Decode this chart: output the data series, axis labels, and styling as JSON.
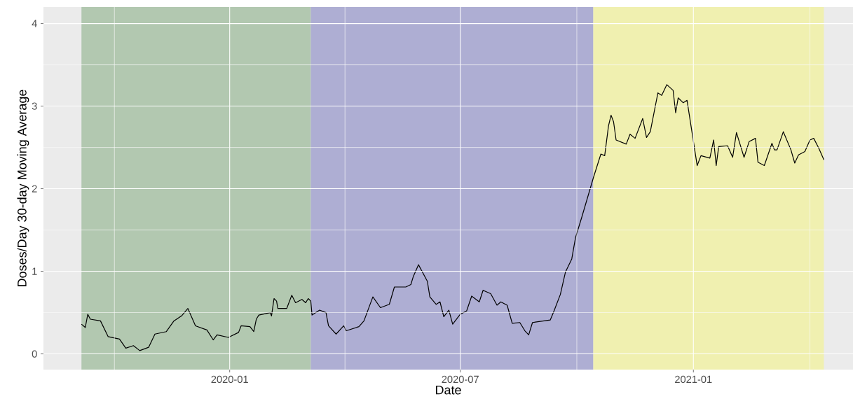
{
  "chart_data": {
    "type": "line",
    "xlabel": "Date",
    "ylabel": "Doses/Day 30-day Moving Average",
    "xlim": [
      "2019-08-07",
      "2021-05-07"
    ],
    "ylim": [
      -0.19,
      4.2
    ],
    "xticks": [
      {
        "value": "2020-01-01",
        "label": "2020-01"
      },
      {
        "value": "2020-07-01",
        "label": "2020-07"
      },
      {
        "value": "2021-01-01",
        "label": "2021-01"
      }
    ],
    "yticks": [
      0,
      1,
      2,
      3,
      4
    ],
    "grid": true,
    "line_style": "solid",
    "bands": [
      {
        "axis": "x",
        "from": "2019-09-06",
        "to": "2020-03-05",
        "color": "#b2c8b0"
      },
      {
        "axis": "x",
        "from": "2020-03-05",
        "to": "2020-10-14",
        "color": "#aeaed3"
      },
      {
        "axis": "x",
        "from": "2020-10-14",
        "to": "2021-04-14",
        "color": "#f0f0b0"
      }
    ],
    "series": [
      {
        "color": "#000000",
        "x": [
          "2019-09-06",
          "2019-09-09",
          "2019-09-11",
          "2019-09-13",
          "2019-09-21",
          "2019-09-27",
          "2019-10-06",
          "2019-10-11",
          "2019-10-17",
          "2019-10-22",
          "2019-10-29",
          "2019-11-03",
          "2019-11-12",
          "2019-11-18",
          "2019-11-24",
          "2019-11-29",
          "2019-12-05",
          "2019-12-14",
          "2019-12-19",
          "2019-12-22",
          "2019-12-31",
          "2020-01-08",
          "2020-01-10",
          "2020-01-17",
          "2020-01-20",
          "2020-01-22",
          "2020-01-24",
          "2020-02-02",
          "2020-02-03",
          "2020-02-05",
          "2020-02-07",
          "2020-02-08",
          "2020-02-15",
          "2020-02-19",
          "2020-02-22",
          "2020-02-27",
          "2020-03-01",
          "2020-03-03",
          "2020-03-05",
          "2020-03-06",
          "2020-03-12",
          "2020-03-17",
          "2020-03-19",
          "2020-03-25",
          "2020-03-31",
          "2020-04-02",
          "2020-04-12",
          "2020-04-16",
          "2020-04-23",
          "2020-04-29",
          "2020-05-06",
          "2020-05-10",
          "2020-05-19",
          "2020-05-23",
          "2020-05-25",
          "2020-05-29",
          "2020-06-05",
          "2020-06-07",
          "2020-06-12",
          "2020-06-15",
          "2020-06-18",
          "2020-06-22",
          "2020-06-25",
          "2020-07-01",
          "2020-07-06",
          "2020-07-10",
          "2020-07-16",
          "2020-07-19",
          "2020-07-25",
          "2020-07-30",
          "2020-08-02",
          "2020-08-07",
          "2020-08-11",
          "2020-08-17",
          "2020-08-21",
          "2020-08-24",
          "2020-08-27",
          "2020-09-10",
          "2020-09-13",
          "2020-09-18",
          "2020-09-22",
          "2020-09-27",
          "2020-09-30",
          "2020-10-05",
          "2020-10-10",
          "2020-10-14",
          "2020-10-20",
          "2020-10-23",
          "2020-10-26",
          "2020-10-28",
          "2020-10-30",
          "2020-11-01",
          "2020-11-09",
          "2020-11-12",
          "2020-11-16",
          "2020-11-22",
          "2020-11-25",
          "2020-11-28",
          "2020-12-04",
          "2020-12-07",
          "2020-12-11",
          "2020-12-16",
          "2020-12-18",
          "2020-12-20",
          "2020-12-24",
          "2020-12-27",
          "2021-01-04",
          "2021-01-07",
          "2021-01-14",
          "2021-01-17",
          "2021-01-19",
          "2021-01-21",
          "2021-01-28",
          "2021-02-01",
          "2021-02-04",
          "2021-02-10",
          "2021-02-14",
          "2021-02-19",
          "2021-02-21",
          "2021-02-26",
          "2021-03-04",
          "2021-03-06",
          "2021-03-08",
          "2021-03-13",
          "2021-03-19",
          "2021-03-22",
          "2021-03-25",
          "2021-03-30",
          "2021-04-03",
          "2021-04-06",
          "2021-04-10",
          "2021-04-14"
        ],
        "values": [
          0.36,
          0.32,
          0.48,
          0.42,
          0.4,
          0.21,
          0.18,
          0.07,
          0.1,
          0.04,
          0.08,
          0.24,
          0.27,
          0.4,
          0.46,
          0.55,
          0.34,
          0.29,
          0.17,
          0.23,
          0.2,
          0.26,
          0.34,
          0.33,
          0.27,
          0.42,
          0.47,
          0.5,
          0.46,
          0.67,
          0.64,
          0.55,
          0.55,
          0.71,
          0.62,
          0.66,
          0.62,
          0.67,
          0.64,
          0.47,
          0.53,
          0.5,
          0.34,
          0.24,
          0.34,
          0.28,
          0.33,
          0.4,
          0.69,
          0.56,
          0.6,
          0.81,
          0.81,
          0.84,
          0.94,
          1.08,
          0.88,
          0.69,
          0.6,
          0.63,
          0.45,
          0.53,
          0.36,
          0.48,
          0.52,
          0.7,
          0.63,
          0.77,
          0.73,
          0.59,
          0.63,
          0.59,
          0.37,
          0.38,
          0.28,
          0.23,
          0.38,
          0.41,
          0.52,
          0.72,
          0.99,
          1.15,
          1.41,
          1.66,
          1.92,
          2.13,
          2.42,
          2.4,
          2.76,
          2.89,
          2.81,
          2.59,
          2.54,
          2.66,
          2.61,
          2.85,
          2.62,
          2.69,
          3.16,
          3.13,
          3.26,
          3.19,
          2.92,
          3.1,
          3.04,
          3.07,
          2.28,
          2.4,
          2.37,
          2.59,
          2.28,
          2.51,
          2.52,
          2.38,
          2.68,
          2.38,
          2.57,
          2.61,
          2.32,
          2.28,
          2.55,
          2.47,
          2.47,
          2.69,
          2.47,
          2.31,
          2.41,
          2.45,
          2.59,
          2.61,
          2.49,
          2.35
        ]
      }
    ]
  }
}
